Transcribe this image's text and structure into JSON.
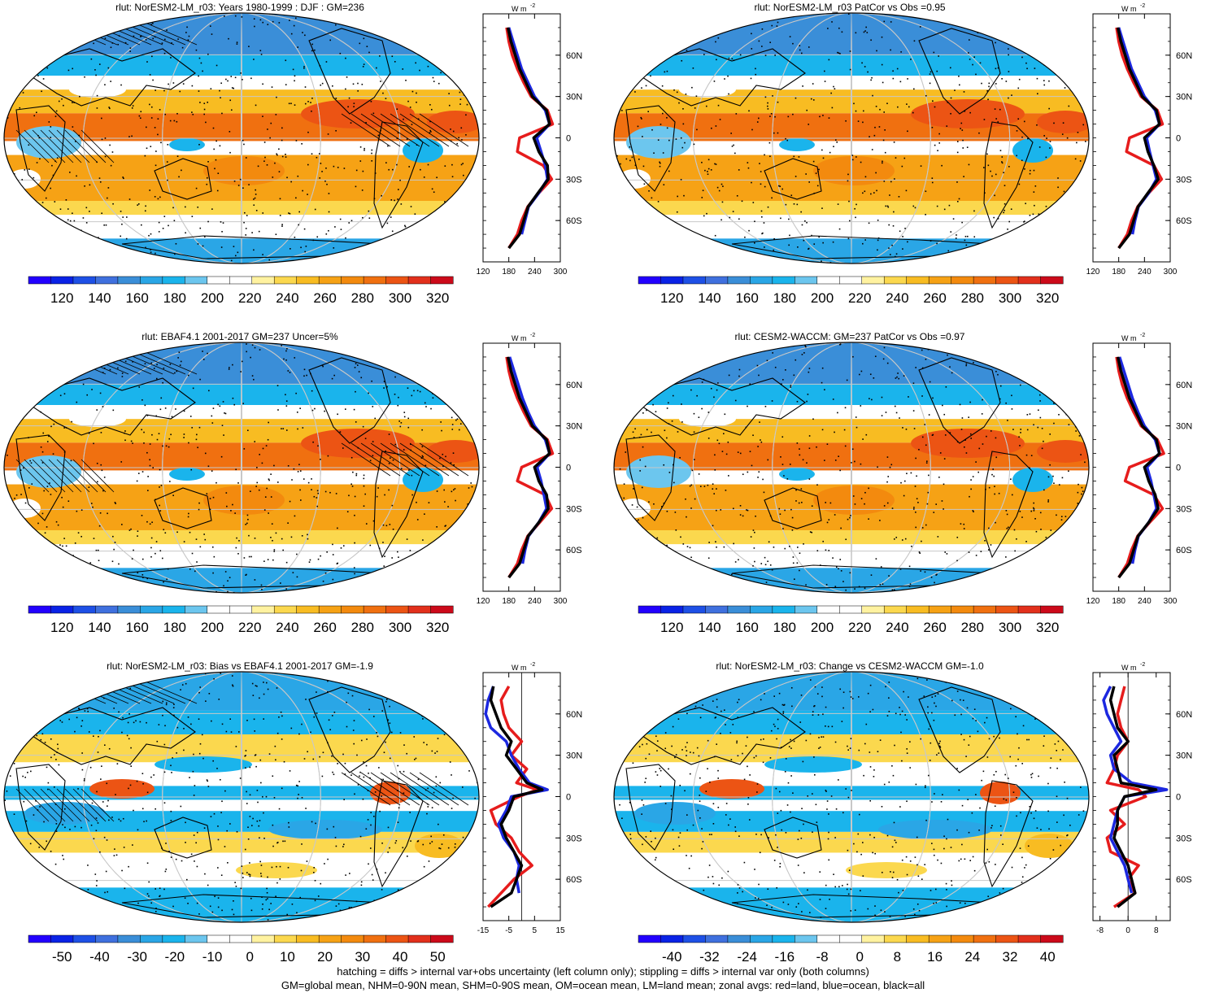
{
  "colors": {
    "scale": [
      "#2200ff",
      "#0a22e6",
      "#1e50e6",
      "#3f70de",
      "#3a8ed8",
      "#2aa6e6",
      "#1ab4ec",
      "#6cc6ee",
      "#ffffff",
      "#ffffff",
      "#fff2a0",
      "#fbd84e",
      "#f8bc22",
      "#f6a215",
      "#f38a0e",
      "#f07010",
      "#ec5414",
      "#e2301c",
      "#cc0a1a"
    ],
    "zonal_land": "#e61c1c",
    "zonal_ocean": "#1c28e0",
    "zonal_all": "#000000"
  },
  "panels": [
    {
      "title": "rlut: NorESM2-LM_r03: Years 1980-1999 : DJF : GM=236",
      "kind": "absolute",
      "colorbar_labels": [
        "120",
        "140",
        "160",
        "180",
        "200",
        "220",
        "240",
        "260",
        "280",
        "300",
        "320"
      ],
      "zonal_ticks": [
        "120",
        "180",
        "240",
        "300"
      ],
      "zonal_unit": "W m",
      "zonal_unit_sup": "-2",
      "lat_labels": [
        "60N",
        "30N",
        "0",
        "30S",
        "60S"
      ]
    },
    {
      "title": "rlut: NorESM2-LM_r03 PatCor vs Obs =0.95",
      "kind": "absolute",
      "colorbar_labels": [
        "120",
        "140",
        "160",
        "180",
        "200",
        "220",
        "240",
        "260",
        "280",
        "300",
        "320"
      ],
      "zonal_ticks": [
        "120",
        "180",
        "240",
        "300"
      ],
      "zonal_unit": "W m",
      "zonal_unit_sup": "-2",
      "lat_labels": [
        "60N",
        "30N",
        "0",
        "30S",
        "60S"
      ]
    },
    {
      "title": "rlut: EBAF4.1 2001-2017 GM=237 Uncer=5%",
      "kind": "absolute",
      "colorbar_labels": [
        "120",
        "140",
        "160",
        "180",
        "200",
        "220",
        "240",
        "260",
        "280",
        "300",
        "320"
      ],
      "zonal_ticks": [
        "120",
        "180",
        "240",
        "300"
      ],
      "zonal_unit": "W m",
      "zonal_unit_sup": "-2",
      "lat_labels": [
        "60N",
        "30N",
        "0",
        "30S",
        "60S"
      ]
    },
    {
      "title": "rlut: CESM2-WACCM: GM=237 PatCor vs Obs =0.97",
      "kind": "absolute",
      "colorbar_labels": [
        "120",
        "140",
        "160",
        "180",
        "200",
        "220",
        "240",
        "260",
        "280",
        "300",
        "320"
      ],
      "zonal_ticks": [
        "120",
        "180",
        "240",
        "300"
      ],
      "zonal_unit": "W m",
      "zonal_unit_sup": "-2",
      "lat_labels": [
        "60N",
        "30N",
        "0",
        "30S",
        "60S"
      ]
    },
    {
      "title": "rlut: NorESM2-LM_r03: Bias vs EBAF4.1 2001-2017 GM=-1.9",
      "kind": "difference",
      "colorbar_labels": [
        "-50",
        "-40",
        "-30",
        "-20",
        "-10",
        "0",
        "10",
        "20",
        "30",
        "40",
        "50"
      ],
      "zonal_ticks": [
        "-15",
        "-5",
        "5",
        "15"
      ],
      "zonal_unit": "W m",
      "zonal_unit_sup": "-2",
      "lat_labels": [
        "60N",
        "30N",
        "0",
        "30S",
        "60S"
      ]
    },
    {
      "title": "rlut: NorESM2-LM_r03: Change vs CESM2-WACCM GM=-1.0",
      "kind": "difference",
      "colorbar_labels": [
        "-40",
        "-32",
        "-24",
        "-16",
        "-8",
        "0",
        "8",
        "16",
        "24",
        "32",
        "40"
      ],
      "zonal_ticks": [
        "-8",
        "0",
        "8"
      ],
      "zonal_unit": "W m",
      "zonal_unit_sup": "-2",
      "lat_labels": [
        "60N",
        "30N",
        "0",
        "30S",
        "60S"
      ]
    }
  ],
  "footer": {
    "line1": "hatching = diffs > internal var+obs uncertainty (left column only); stippling = diffs > internal var only (both columns)",
    "line2": "GM=global mean, NHM=0-90N mean, SHM=0-90S mean, OM=ocean mean, LM=land mean; zonal avgs: red=land, blue=ocean, black=all"
  },
  "chart_data": [
    {
      "type": "line",
      "title": "rlut: NorESM2-LM_r03: Years 1980-1999 : DJF : GM=236",
      "xlim": [
        120,
        300
      ],
      "ylim": [
        -90,
        90
      ],
      "x_ticks": [
        120,
        180,
        240,
        300
      ],
      "series": [
        {
          "name": "all",
          "y": [
            -80,
            -70,
            -60,
            -50,
            -40,
            -30,
            -20,
            -10,
            0,
            10,
            20,
            30,
            40,
            50,
            60,
            70,
            80
          ],
          "values": [
            180,
            205,
            215,
            225,
            248,
            272,
            270,
            250,
            238,
            275,
            268,
            235,
            220,
            205,
            195,
            185,
            178
          ]
        },
        {
          "name": "ocean",
          "y": [
            -70,
            -60,
            -50,
            -40,
            -30,
            -20,
            -10,
            0,
            10,
            20,
            30,
            40,
            50,
            60,
            70,
            80
          ],
          "values": [
            210,
            218,
            226,
            250,
            270,
            265,
            255,
            245,
            275,
            265,
            240,
            225,
            210,
            200,
            190,
            180
          ]
        },
        {
          "name": "land",
          "y": [
            -80,
            -70,
            -60,
            -50,
            -40,
            -30,
            -20,
            -10,
            0,
            10,
            20,
            30,
            40,
            50,
            60,
            70,
            80
          ],
          "values": [
            180,
            200,
            210,
            224,
            250,
            280,
            260,
            200,
            205,
            282,
            270,
            232,
            215,
            200,
            188,
            180,
            175
          ]
        }
      ]
    },
    {
      "type": "line",
      "title": "rlut: NorESM2-LM_r03 PatCor vs Obs =0.95",
      "xlim": [
        120,
        300
      ],
      "ylim": [
        -90,
        90
      ],
      "x_ticks": [
        120,
        180,
        240,
        300
      ],
      "series": [
        {
          "name": "all",
          "y": [
            -80,
            -70,
            -60,
            -50,
            -40,
            -30,
            -20,
            -10,
            0,
            10,
            20,
            30,
            40,
            50,
            60,
            70,
            80
          ],
          "values": [
            180,
            205,
            215,
            225,
            248,
            272,
            262,
            248,
            240,
            275,
            268,
            235,
            220,
            205,
            195,
            185,
            178
          ]
        },
        {
          "name": "ocean",
          "y": [
            -70,
            -60,
            -50,
            -40,
            -30,
            -20,
            -10,
            0,
            10,
            20,
            30,
            40,
            50,
            60,
            70,
            80
          ],
          "values": [
            212,
            218,
            226,
            250,
            268,
            260,
            252,
            245,
            275,
            265,
            240,
            225,
            210,
            200,
            190,
            180
          ]
        },
        {
          "name": "land",
          "y": [
            -80,
            -70,
            -60,
            -50,
            -40,
            -30,
            -20,
            -10,
            0,
            10,
            20,
            30,
            40,
            50,
            60,
            70,
            80
          ],
          "values": [
            180,
            200,
            210,
            224,
            250,
            280,
            262,
            198,
            205,
            282,
            270,
            232,
            215,
            200,
            188,
            180,
            175
          ]
        }
      ]
    },
    {
      "type": "line",
      "title": "rlut: EBAF4.1 2001-2017 GM=237 Uncer=5%",
      "xlim": [
        120,
        300
      ],
      "ylim": [
        -90,
        90
      ],
      "x_ticks": [
        120,
        180,
        240,
        300
      ],
      "series": [
        {
          "name": "all",
          "y": [
            -80,
            -70,
            -60,
            -50,
            -40,
            -30,
            -20,
            -10,
            0,
            10,
            20,
            30,
            40,
            50,
            60,
            70,
            80
          ],
          "values": [
            180,
            205,
            215,
            225,
            250,
            272,
            268,
            250,
            240,
            275,
            268,
            235,
            220,
            205,
            195,
            185,
            178
          ]
        },
        {
          "name": "ocean",
          "y": [
            -70,
            -60,
            -50,
            -40,
            -30,
            -20,
            -10,
            0,
            10,
            20,
            30,
            40,
            50,
            60,
            70,
            80
          ],
          "values": [
            212,
            218,
            226,
            250,
            268,
            262,
            255,
            246,
            275,
            265,
            240,
            225,
            212,
            202,
            192,
            182
          ]
        },
        {
          "name": "land",
          "y": [
            -80,
            -70,
            -60,
            -50,
            -40,
            -30,
            -20,
            -10,
            0,
            10,
            20,
            30,
            40,
            50,
            60,
            70,
            80
          ],
          "values": [
            180,
            200,
            210,
            224,
            252,
            280,
            265,
            200,
            210,
            282,
            270,
            232,
            215,
            200,
            188,
            180,
            175
          ]
        }
      ]
    },
    {
      "type": "line",
      "title": "rlut: CESM2-WACCM: GM=237 PatCor vs Obs =0.97",
      "xlim": [
        120,
        300
      ],
      "ylim": [
        -90,
        90
      ],
      "x_ticks": [
        120,
        180,
        240,
        300
      ],
      "series": [
        {
          "name": "all",
          "y": [
            -80,
            -70,
            -60,
            -50,
            -40,
            -30,
            -20,
            -10,
            0,
            10,
            20,
            30,
            40,
            50,
            60,
            70,
            80
          ],
          "values": [
            180,
            205,
            215,
            225,
            250,
            272,
            265,
            250,
            240,
            275,
            268,
            235,
            220,
            205,
            195,
            185,
            178
          ]
        },
        {
          "name": "ocean",
          "y": [
            -70,
            -60,
            -50,
            -40,
            -30,
            -20,
            -10,
            0,
            10,
            20,
            30,
            40,
            50,
            60,
            70,
            80
          ],
          "values": [
            212,
            218,
            226,
            250,
            268,
            262,
            255,
            246,
            275,
            265,
            240,
            225,
            212,
            202,
            192,
            182
          ]
        },
        {
          "name": "land",
          "y": [
            -80,
            -70,
            -60,
            -50,
            -40,
            -30,
            -20,
            -10,
            0,
            10,
            20,
            30,
            40,
            50,
            60,
            70,
            80
          ],
          "values": [
            180,
            200,
            210,
            224,
            252,
            282,
            262,
            195,
            205,
            285,
            270,
            232,
            215,
            200,
            188,
            180,
            175
          ]
        }
      ]
    },
    {
      "type": "line",
      "title": "rlut: NorESM2-LM_r03: Bias vs EBAF4.1 2001-2017 GM=-1.9",
      "xlim": [
        -15,
        15
      ],
      "ylim": [
        -90,
        90
      ],
      "x_ticks": [
        -15,
        -5,
        5,
        15
      ],
      "series": [
        {
          "name": "all",
          "y": [
            -80,
            -70,
            -60,
            -50,
            -40,
            -30,
            -20,
            -10,
            0,
            5,
            10,
            20,
            30,
            40,
            50,
            60,
            70,
            80
          ],
          "values": [
            -12,
            -4,
            -2,
            0,
            -3,
            -6,
            -8,
            -5,
            -3,
            8,
            2,
            -2,
            -6,
            -4,
            -8,
            -10,
            -12,
            -11
          ]
        },
        {
          "name": "ocean",
          "y": [
            -70,
            -60,
            -50,
            -40,
            -30,
            -20,
            -10,
            0,
            5,
            10,
            20,
            30,
            40,
            50,
            60,
            70,
            80
          ],
          "values": [
            -1,
            -2,
            -1,
            -3,
            -7,
            -9,
            -6,
            -4,
            10,
            3,
            -1,
            -4,
            -6,
            -12,
            -14,
            -13,
            -11
          ]
        },
        {
          "name": "land",
          "y": [
            -80,
            -70,
            -60,
            -50,
            -40,
            -30,
            -20,
            -10,
            0,
            5,
            10,
            20,
            30,
            40,
            50,
            60,
            70,
            80
          ],
          "values": [
            -13,
            -8,
            -3,
            4,
            -1,
            -4,
            -10,
            -12,
            -1,
            6,
            -2,
            2,
            -4,
            0,
            -5,
            -7,
            -8,
            -5
          ]
        }
      ]
    },
    {
      "type": "line",
      "title": "rlut: NorESM2-LM_r03: Change vs CESM2-WACCM GM=-1.0",
      "xlim": [
        -10,
        12
      ],
      "ylim": [
        -90,
        90
      ],
      "x_ticks": [
        -8,
        0,
        8
      ],
      "series": [
        {
          "name": "all",
          "y": [
            -80,
            -70,
            -60,
            -50,
            -40,
            -30,
            -20,
            -10,
            0,
            5,
            10,
            20,
            30,
            40,
            50,
            60,
            70,
            80
          ],
          "values": [
            -3,
            2,
            1,
            0,
            -2,
            -4,
            -3,
            -3,
            -1,
            8,
            -2,
            -3,
            -4,
            0,
            -3,
            -4,
            -5,
            -4
          ]
        },
        {
          "name": "ocean",
          "y": [
            -70,
            -60,
            -50,
            -40,
            -30,
            -20,
            -10,
            0,
            5,
            10,
            20,
            30,
            40,
            50,
            60,
            70,
            80
          ],
          "values": [
            1,
            0,
            -1,
            -3,
            -5,
            -4,
            -3,
            -1,
            11,
            1,
            -4,
            -5,
            -2,
            -4,
            -6,
            -7,
            -5
          ]
        },
        {
          "name": "land",
          "y": [
            -80,
            -70,
            -60,
            -50,
            -40,
            -30,
            -20,
            -10,
            0,
            5,
            10,
            20,
            30,
            40,
            50,
            60,
            70,
            80
          ],
          "values": [
            -4,
            2,
            0,
            3,
            -5,
            -6,
            -1,
            -5,
            5,
            3,
            -6,
            -4,
            -3,
            0,
            -2,
            -3,
            -2,
            -1
          ]
        }
      ]
    }
  ]
}
